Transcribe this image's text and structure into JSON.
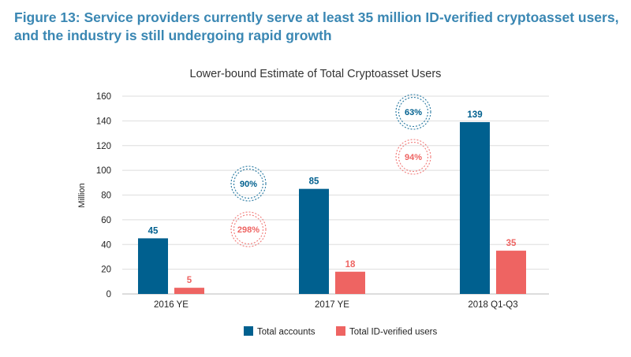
{
  "figure_title": "Figure 13: Service providers currently serve at least 35 million ID-verified cryptoasset users, and the industry is still undergoing rapid growth",
  "colors": {
    "title": "#3a87b3",
    "accounts": "#00608f",
    "verified": "#ee6462",
    "grid": "#dedede"
  },
  "chart_data": {
    "type": "bar",
    "title": "Lower-bound Estimate of Total Cryptoasset Users",
    "xlabel": "",
    "ylabel": "Million",
    "ylim": [
      0,
      160
    ],
    "yticks": [
      "0",
      "20",
      "40",
      "60",
      "80",
      "100",
      "120",
      "140",
      "160"
    ],
    "grid": true,
    "legend_position": "bottom",
    "categories": [
      "2016 YE",
      "2017 YE",
      "2018 Q1-Q3"
    ],
    "series": [
      {
        "name": "Total accounts",
        "values": [
          45,
          85,
          139
        ],
        "labels": [
          "45",
          "85",
          "139"
        ],
        "color": "#00608f"
      },
      {
        "name": "Total ID-verified users",
        "values": [
          5,
          18,
          35
        ],
        "labels": [
          "5",
          "18",
          "35"
        ],
        "color": "#ee6462"
      }
    ],
    "annotations": [
      {
        "text": "90%",
        "series": "Total accounts",
        "between": [
          "2016 YE",
          "2017 YE"
        ]
      },
      {
        "text": "298%",
        "series": "Total ID-verified users",
        "between": [
          "2016 YE",
          "2017 YE"
        ]
      },
      {
        "text": "63%",
        "series": "Total accounts",
        "between": [
          "2017 YE",
          "2018 Q1-Q3"
        ]
      },
      {
        "text": "94%",
        "series": "Total ID-verified users",
        "between": [
          "2017 YE",
          "2018 Q1-Q3"
        ]
      }
    ]
  }
}
